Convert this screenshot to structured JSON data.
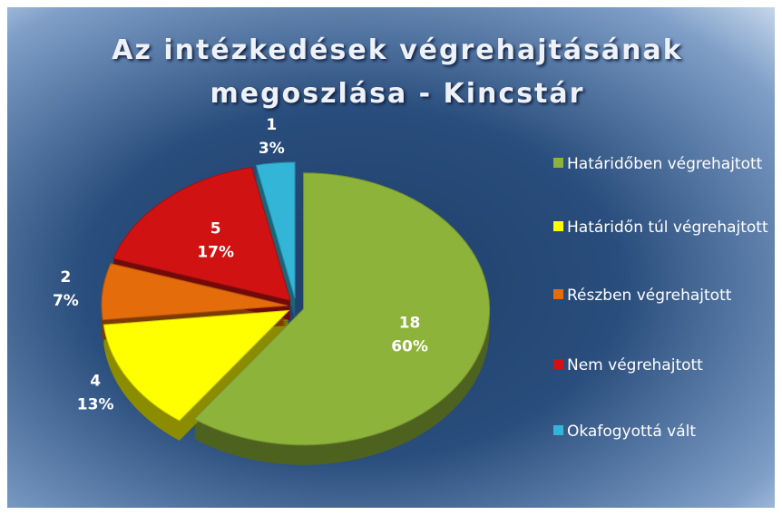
{
  "chart_data": {
    "type": "pie",
    "title": "Az intézkedések végrehajtásának megoszlása - Kincstár",
    "categories": [
      "Határidőben végrehajtott",
      "Határidőn túl végrehajtott",
      "Részben végrehajtott",
      "Nem végrehajtott",
      "Okafogyottá vált"
    ],
    "values": [
      18,
      4,
      2,
      5,
      1
    ],
    "percent_labels": [
      "60%",
      "13%",
      "7%",
      "17%",
      "3%"
    ],
    "colors": [
      "#8db33a",
      "#ffff00",
      "#e46c0a",
      "#d01212",
      "#33b5d8"
    ],
    "legend": "right"
  }
}
